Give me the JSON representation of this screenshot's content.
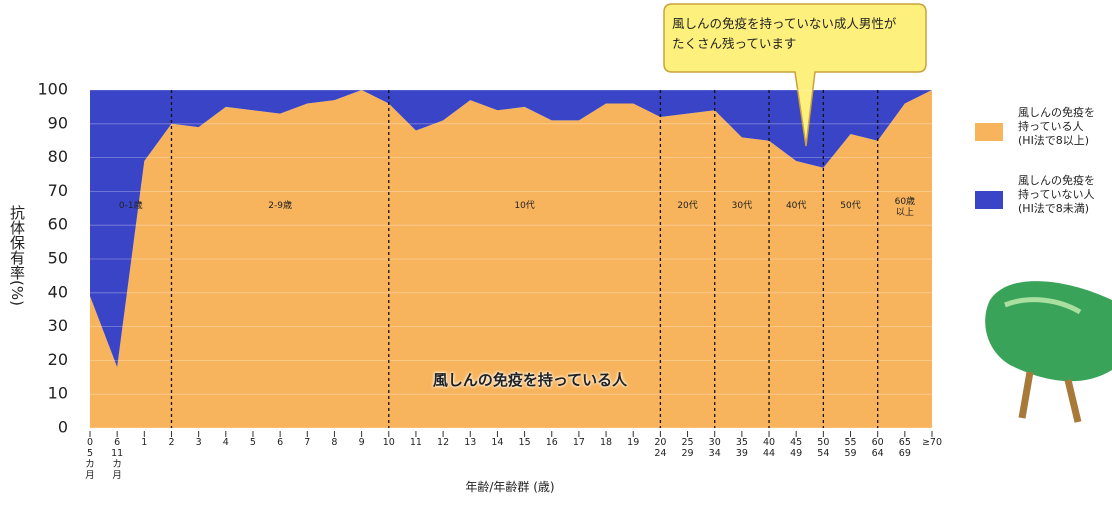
{
  "chart_data": {
    "type": "stacked-area",
    "ylabel": "抗体保有率(%)",
    "xlabel": "年齢/年齢群 (歳)",
    "categories": [
      "0\n5\nカ\n月",
      "6\n11\nカ\n月",
      "1",
      "2",
      "3",
      "4",
      "5",
      "6",
      "7",
      "8",
      "9",
      "10",
      "11",
      "12",
      "13",
      "14",
      "15",
      "16",
      "17",
      "18",
      "19",
      "20\n24",
      "25\n29",
      "30\n34",
      "35\n39",
      "40\n44",
      "45\n49",
      "50\n54",
      "55\n59",
      "60\n64",
      "65\n69",
      "≥70"
    ],
    "series": [
      {
        "name": "風しんの免疫を\n持っている人\n(HI法で8以上)",
        "color": "#f7b45c",
        "values": [
          39,
          18,
          79,
          90,
          89,
          95,
          94,
          93,
          96,
          97,
          100,
          96,
          88,
          91,
          97,
          94,
          95,
          91,
          91,
          96,
          96,
          92,
          93,
          94,
          86,
          85,
          79,
          77,
          87,
          85,
          96,
          100
        ]
      },
      {
        "name": "風しんの免疫を\n持っていない人\n(HI法で8未満)",
        "color": "#3a44c6",
        "values": [
          61,
          82,
          21,
          10,
          11,
          5,
          6,
          7,
          4,
          3,
          0,
          4,
          12,
          9,
          3,
          6,
          5,
          9,
          9,
          4,
          4,
          8,
          7,
          6,
          14,
          15,
          21,
          23,
          13,
          15,
          4,
          0
        ]
      }
    ],
    "ylim": [
      0,
      100
    ],
    "yticks": [
      0,
      10,
      20,
      30,
      40,
      50,
      60,
      70,
      80,
      90,
      100
    ],
    "grid": true,
    "groups": [
      "0-1歳",
      "2-9歳",
      "10代",
      "20代",
      "30代",
      "40代",
      "50代",
      "60歳\n以上"
    ],
    "area_label": "風しんの免疫を持っている人",
    "callout": "風しんの免疫を持っていない成人男性が\nたくさん残っています",
    "legend": "right"
  }
}
